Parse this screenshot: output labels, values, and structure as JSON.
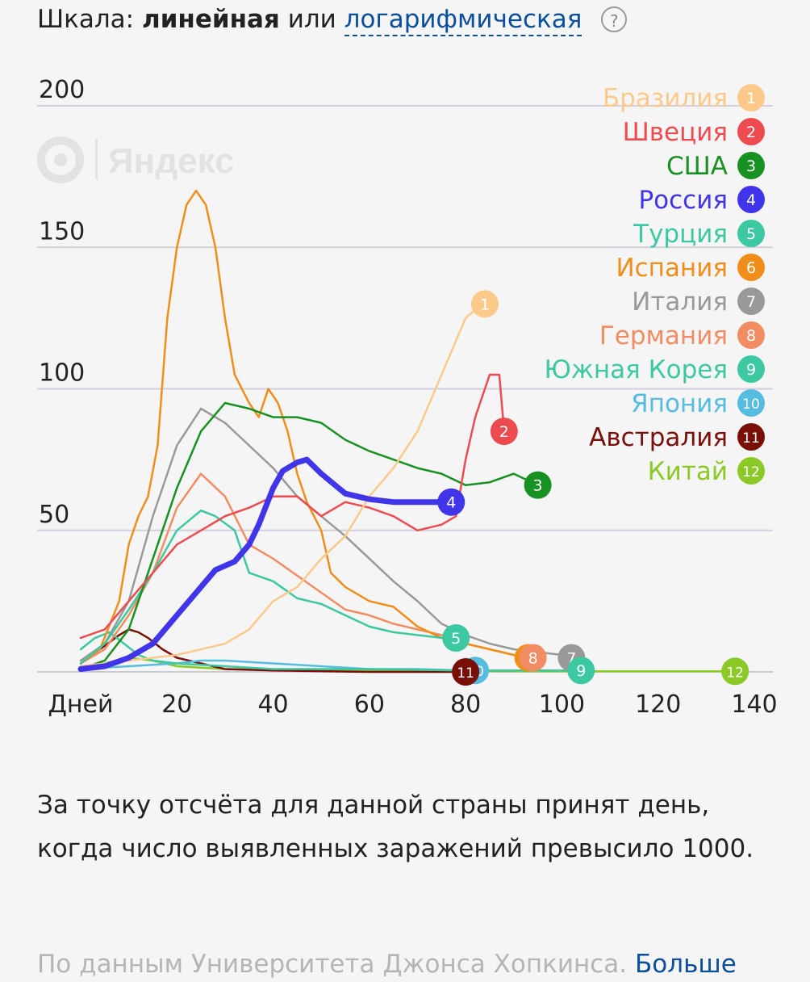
{
  "scale": {
    "prefix": "Шкала:",
    "linear": "линейная",
    "or": "или",
    "log": "логарифмическая",
    "help": "?"
  },
  "watermark": "Яндекс",
  "note": "За точку отсчёта для данной страны принят день, когда число выявленных заражений превысило 1000.",
  "source": {
    "text": "По данным Университета Джонса Хопкинса.",
    "more": "Больше"
  },
  "chart_data": {
    "type": "line",
    "x_label": "Дней",
    "xlim": [
      0,
      140
    ],
    "ylim": [
      0,
      200
    ],
    "x_ticks": [
      20,
      40,
      60,
      80,
      100,
      120,
      140
    ],
    "y_ticks": [
      50,
      100,
      150,
      200
    ],
    "grid": true,
    "legend": "top-right",
    "series": [
      {
        "name": "Бразилия",
        "num": "1",
        "color": "#fbc98a",
        "points": [
          [
            0,
            2
          ],
          [
            10,
            4
          ],
          [
            20,
            6
          ],
          [
            30,
            10
          ],
          [
            35,
            15
          ],
          [
            40,
            25
          ],
          [
            45,
            30
          ],
          [
            50,
            40
          ],
          [
            55,
            48
          ],
          [
            60,
            62
          ],
          [
            65,
            72
          ],
          [
            70,
            85
          ],
          [
            75,
            105
          ],
          [
            80,
            125
          ],
          [
            82,
            128
          ],
          [
            84,
            130
          ]
        ]
      },
      {
        "name": "Швеция",
        "num": "2",
        "color": "#ee4b50",
        "points": [
          [
            0,
            12
          ],
          [
            5,
            15
          ],
          [
            10,
            25
          ],
          [
            15,
            35
          ],
          [
            20,
            45
          ],
          [
            25,
            50
          ],
          [
            30,
            55
          ],
          [
            35,
            58
          ],
          [
            40,
            62
          ],
          [
            45,
            62
          ],
          [
            50,
            55
          ],
          [
            55,
            60
          ],
          [
            60,
            58
          ],
          [
            65,
            55
          ],
          [
            70,
            50
          ],
          [
            75,
            52
          ],
          [
            78,
            55
          ],
          [
            80,
            75
          ],
          [
            82,
            90
          ],
          [
            84,
            100
          ],
          [
            85,
            105
          ],
          [
            87,
            105
          ],
          [
            88,
            85
          ]
        ]
      },
      {
        "name": "США",
        "num": "3",
        "color": "#179121",
        "points": [
          [
            0,
            1
          ],
          [
            5,
            4
          ],
          [
            10,
            15
          ],
          [
            15,
            40
          ],
          [
            20,
            65
          ],
          [
            25,
            85
          ],
          [
            30,
            95
          ],
          [
            35,
            93
          ],
          [
            40,
            90
          ],
          [
            45,
            90
          ],
          [
            50,
            88
          ],
          [
            55,
            82
          ],
          [
            60,
            78
          ],
          [
            65,
            75
          ],
          [
            70,
            72
          ],
          [
            75,
            70
          ],
          [
            80,
            66
          ],
          [
            85,
            67
          ],
          [
            90,
            70
          ],
          [
            95,
            66
          ]
        ]
      },
      {
        "name": "Россия",
        "num": "4",
        "color": "#4035e8",
        "points": [
          [
            0,
            1
          ],
          [
            5,
            2
          ],
          [
            10,
            5
          ],
          [
            15,
            10
          ],
          [
            20,
            20
          ],
          [
            25,
            30
          ],
          [
            28,
            36
          ],
          [
            32,
            39
          ],
          [
            35,
            45
          ],
          [
            37,
            52
          ],
          [
            40,
            65
          ],
          [
            42,
            71
          ],
          [
            45,
            74
          ],
          [
            47,
            75
          ],
          [
            50,
            70
          ],
          [
            55,
            63
          ],
          [
            60,
            61
          ],
          [
            65,
            60
          ],
          [
            70,
            60
          ],
          [
            75,
            60
          ],
          [
            77,
            60
          ]
        ]
      },
      {
        "name": "Турция",
        "num": "5",
        "color": "#3cc8a0",
        "points": [
          [
            0,
            3
          ],
          [
            5,
            10
          ],
          [
            10,
            22
          ],
          [
            15,
            35
          ],
          [
            20,
            50
          ],
          [
            25,
            57
          ],
          [
            28,
            55
          ],
          [
            32,
            50
          ],
          [
            35,
            35
          ],
          [
            40,
            32
          ],
          [
            45,
            26
          ],
          [
            50,
            24
          ],
          [
            55,
            20
          ],
          [
            60,
            16
          ],
          [
            65,
            14
          ],
          [
            70,
            13
          ],
          [
            75,
            12
          ],
          [
            78,
            12
          ]
        ]
      },
      {
        "name": "Испания",
        "num": "6",
        "color": "#f08e1c",
        "points": [
          [
            0,
            3
          ],
          [
            4,
            8
          ],
          [
            8,
            25
          ],
          [
            10,
            45
          ],
          [
            12,
            55
          ],
          [
            14,
            62
          ],
          [
            16,
            80
          ],
          [
            18,
            125
          ],
          [
            20,
            150
          ],
          [
            22,
            165
          ],
          [
            24,
            170
          ],
          [
            26,
            165
          ],
          [
            28,
            150
          ],
          [
            30,
            125
          ],
          [
            32,
            105
          ],
          [
            35,
            95
          ],
          [
            37,
            90
          ],
          [
            39,
            100
          ],
          [
            41,
            95
          ],
          [
            43,
            85
          ],
          [
            45,
            70
          ],
          [
            47,
            60
          ],
          [
            50,
            50
          ],
          [
            52,
            35
          ],
          [
            55,
            30
          ],
          [
            60,
            25
          ],
          [
            65,
            23
          ],
          [
            70,
            16
          ],
          [
            75,
            12
          ],
          [
            80,
            10
          ],
          [
            85,
            8
          ],
          [
            90,
            6
          ],
          [
            93,
            5
          ]
        ]
      },
      {
        "name": "Италия",
        "num": "7",
        "color": "#999999",
        "points": [
          [
            0,
            4
          ],
          [
            5,
            10
          ],
          [
            10,
            25
          ],
          [
            15,
            55
          ],
          [
            20,
            80
          ],
          [
            25,
            93
          ],
          [
            30,
            88
          ],
          [
            35,
            80
          ],
          [
            40,
            72
          ],
          [
            45,
            62
          ],
          [
            50,
            55
          ],
          [
            55,
            48
          ],
          [
            60,
            40
          ],
          [
            65,
            32
          ],
          [
            70,
            25
          ],
          [
            75,
            17
          ],
          [
            80,
            13
          ],
          [
            85,
            10
          ],
          [
            90,
            8
          ],
          [
            95,
            7
          ],
          [
            100,
            6
          ],
          [
            102,
            5
          ]
        ]
      },
      {
        "name": "Германия",
        "num": "8",
        "color": "#f28c63",
        "points": [
          [
            0,
            3
          ],
          [
            5,
            8
          ],
          [
            10,
            20
          ],
          [
            15,
            35
          ],
          [
            20,
            58
          ],
          [
            25,
            70
          ],
          [
            30,
            62
          ],
          [
            35,
            45
          ],
          [
            40,
            40
          ],
          [
            45,
            34
          ],
          [
            50,
            28
          ],
          [
            55,
            22
          ],
          [
            60,
            20
          ],
          [
            65,
            17
          ],
          [
            70,
            15
          ],
          [
            75,
            13
          ],
          [
            80,
            10
          ],
          [
            85,
            8
          ],
          [
            90,
            6
          ],
          [
            94,
            5
          ]
        ]
      },
      {
        "name": "Южная Корея",
        "num": "9",
        "color": "#3cc8a0",
        "points": [
          [
            0,
            8
          ],
          [
            3,
            12
          ],
          [
            6,
            14
          ],
          [
            9,
            10
          ],
          [
            12,
            6
          ],
          [
            15,
            4
          ],
          [
            20,
            3
          ],
          [
            30,
            2
          ],
          [
            40,
            1
          ],
          [
            60,
            1
          ],
          [
            80,
            0.5
          ],
          [
            100,
            0.5
          ],
          [
            104,
            0.5
          ]
        ]
      },
      {
        "name": "Япония",
        "num": "10",
        "color": "#56bde0",
        "points": [
          [
            0,
            1
          ],
          [
            10,
            2
          ],
          [
            20,
            3
          ],
          [
            25,
            4
          ],
          [
            30,
            4
          ],
          [
            40,
            3
          ],
          [
            50,
            2
          ],
          [
            60,
            1
          ],
          [
            70,
            1
          ],
          [
            80,
            0.5
          ],
          [
            82,
            0.5
          ]
        ]
      },
      {
        "name": "Австралия",
        "num": "11",
        "color": "#7a0f08",
        "points": [
          [
            0,
            3
          ],
          [
            4,
            8
          ],
          [
            8,
            13
          ],
          [
            10,
            15
          ],
          [
            12,
            14
          ],
          [
            14,
            12
          ],
          [
            17,
            8
          ],
          [
            20,
            5
          ],
          [
            25,
            3
          ],
          [
            30,
            1
          ],
          [
            40,
            0.5
          ],
          [
            60,
            0
          ],
          [
            80,
            0
          ]
        ]
      },
      {
        "name": "Китай",
        "num": "12",
        "color": "#8ac926",
        "points": [
          [
            0,
            1
          ],
          [
            5,
            3
          ],
          [
            10,
            5
          ],
          [
            15,
            4
          ],
          [
            20,
            2
          ],
          [
            30,
            1
          ],
          [
            50,
            0.5
          ],
          [
            80,
            0.3
          ],
          [
            100,
            0.2
          ],
          [
            120,
            0.2
          ],
          [
            136,
            0.2
          ]
        ]
      }
    ]
  }
}
